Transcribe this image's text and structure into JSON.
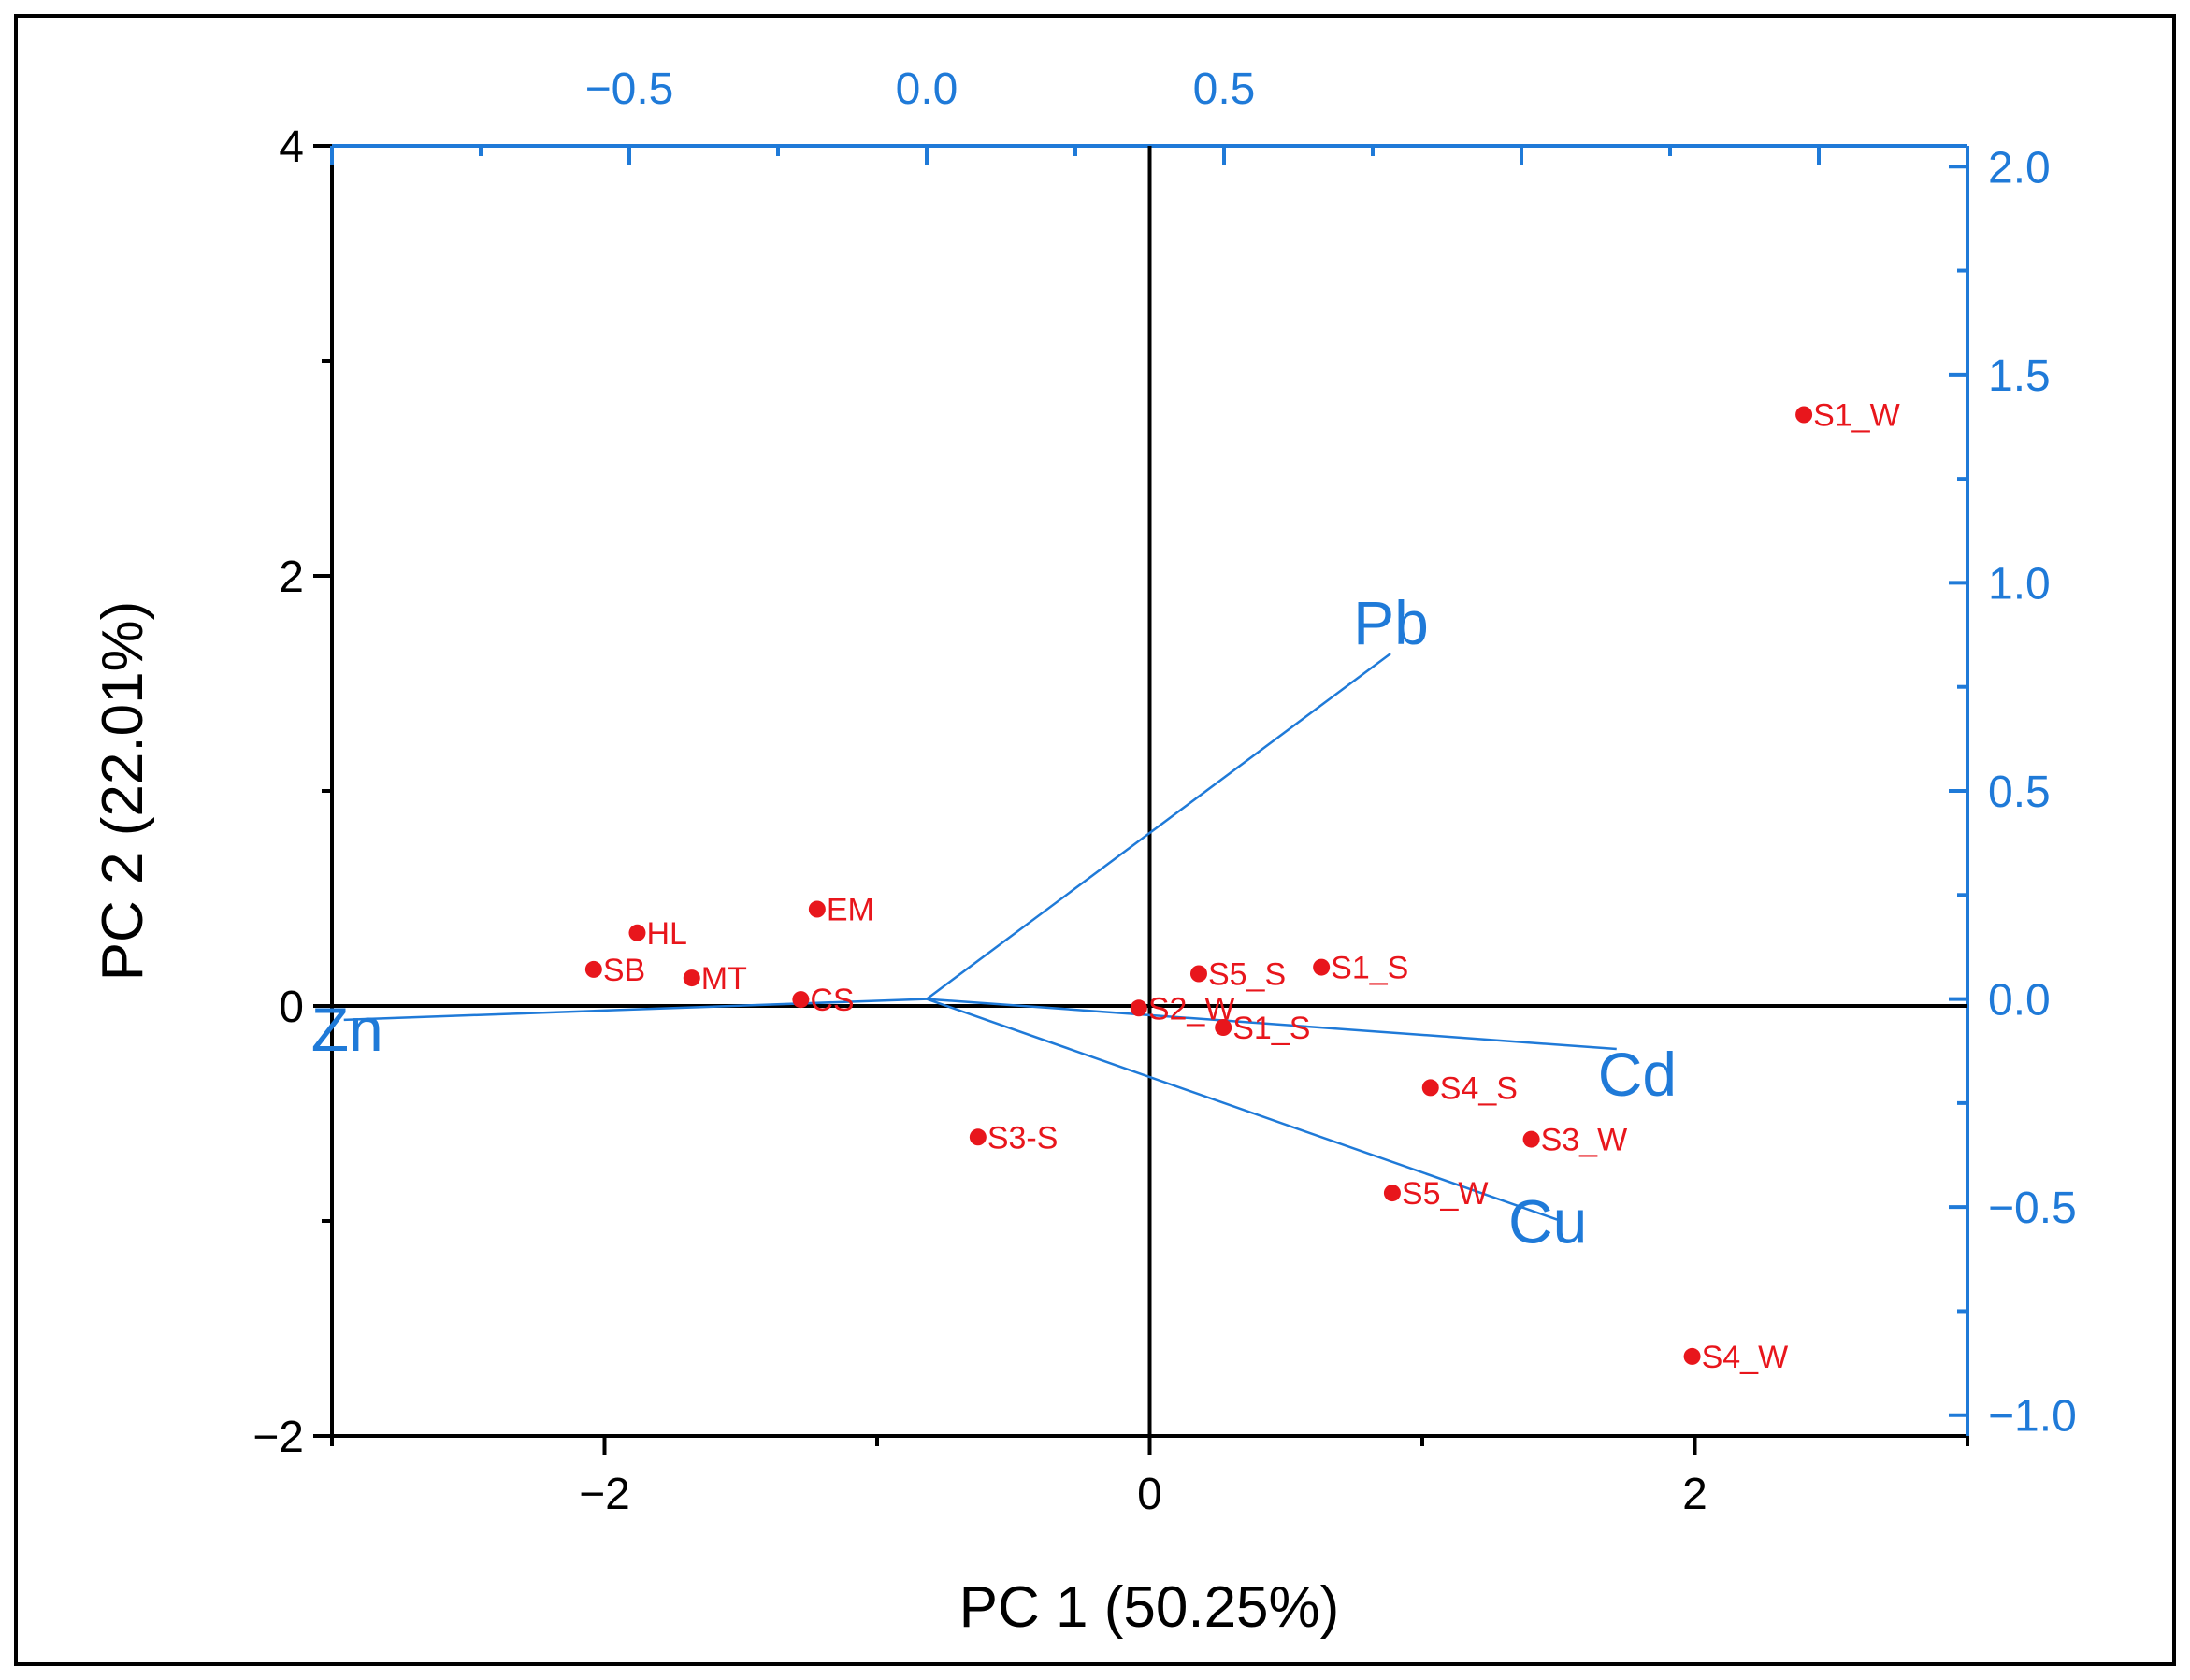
{
  "chart_data": {
    "type": "scatter",
    "subtype": "biplot",
    "xlabel": "PC 1 (50.25%)",
    "ylabel": "PC 2 (22.01%)",
    "xlim": [
      -3.0,
      3.0
    ],
    "ylim": [
      -2.0,
      4.0
    ],
    "x2lim": [
      -1.0,
      1.75
    ],
    "y2lim": [
      -1.05,
      2.05
    ],
    "x_ticks": [
      -2,
      0,
      2
    ],
    "x_tick_labels": [
      "−2",
      "0",
      "2"
    ],
    "y_ticks": [
      -2,
      0,
      2,
      4
    ],
    "y_tick_labels": [
      "−2",
      "0",
      "2",
      "4"
    ],
    "x2_ticks": [
      -0.5,
      0.0,
      0.5
    ],
    "x2_tick_labels": [
      "−0.5",
      "0.0",
      "0.5"
    ],
    "y2_ticks": [
      -1.0,
      -0.5,
      0.0,
      0.5,
      1.0,
      1.5,
      2.0
    ],
    "y2_tick_labels": [
      "−1.0",
      "−0.5",
      "0.0",
      "0.5",
      "1.0",
      "1.5",
      "2.0"
    ],
    "scores": [
      {
        "label": "S1_W",
        "x": 2.4,
        "y": 2.75
      },
      {
        "label": "EM",
        "x": -1.22,
        "y": 0.45
      },
      {
        "label": "HL",
        "x": -1.88,
        "y": 0.34
      },
      {
        "label": "SB",
        "x": -2.04,
        "y": 0.17
      },
      {
        "label": "MT",
        "x": -1.68,
        "y": 0.13
      },
      {
        "label": "CS",
        "x": -1.28,
        "y": 0.03
      },
      {
        "label": "S5_S",
        "x": 0.18,
        "y": 0.15
      },
      {
        "label": "S1_S",
        "x": 0.63,
        "y": 0.18
      },
      {
        "label": "S2_W",
        "x": -0.04,
        "y": -0.01
      },
      {
        "label": "S1_S",
        "x": 0.27,
        "y": -0.1
      },
      {
        "label": "S4_S",
        "x": 1.03,
        "y": -0.38
      },
      {
        "label": "S3_W",
        "x": 1.4,
        "y": -0.62
      },
      {
        "label": "S3-S",
        "x": -0.63,
        "y": -0.61
      },
      {
        "label": "S5_W",
        "x": 0.89,
        "y": -0.87
      },
      {
        "label": "S4_W",
        "x": 1.99,
        "y": -1.63
      }
    ],
    "loadings": [
      {
        "label": "Pb",
        "x": 0.78,
        "y": 0.83
      },
      {
        "label": "Cd",
        "x": 1.16,
        "y": -0.12
      },
      {
        "label": "Cu",
        "x": 1.06,
        "y": -0.53
      },
      {
        "label": "Zn",
        "x": -0.98,
        "y": -0.05
      }
    ],
    "colors": {
      "scores": "#e8161c",
      "loadings": "#1f7ad8",
      "primary_axes": "#000000"
    }
  }
}
